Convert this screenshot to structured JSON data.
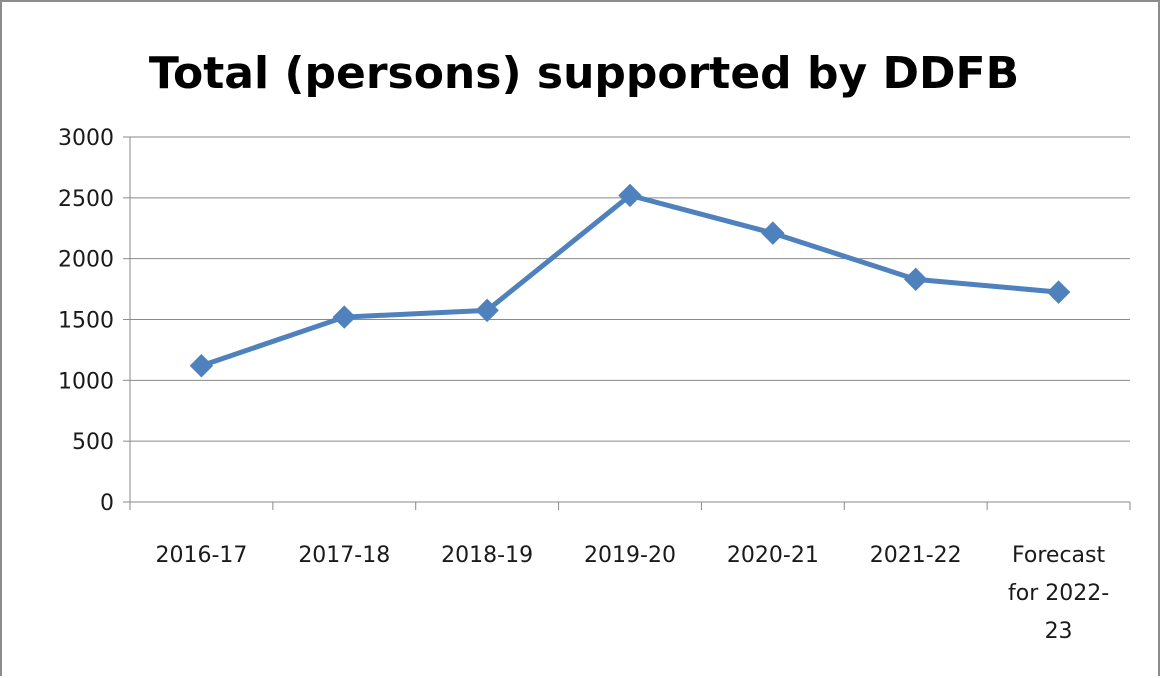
{
  "chart_data": {
    "type": "line",
    "title": "Total (persons) supported by DDFB",
    "xlabel": "",
    "ylabel": "",
    "categories": [
      "2016-17",
      "2017-18",
      "2018-19",
      "2019-20",
      "2020-21",
      "2021-22",
      "Forecast for 2022-23"
    ],
    "category_lines": [
      [
        "2016-17"
      ],
      [
        "2017-18"
      ],
      [
        "2018-19"
      ],
      [
        "2019-20"
      ],
      [
        "2020-21"
      ],
      [
        "2021-22"
      ],
      [
        "Forecast",
        "for 2022-",
        "23"
      ]
    ],
    "series": [
      {
        "values": [
          1120,
          1520,
          1575,
          2520,
          2210,
          1830,
          1725
        ],
        "color": "#4f81bd",
        "marker": "diamond"
      }
    ],
    "ylim": [
      0,
      3000
    ],
    "yticks": [
      0,
      500,
      1000,
      1500,
      2000,
      2500,
      3000
    ],
    "grid": true,
    "legend": "none"
  }
}
